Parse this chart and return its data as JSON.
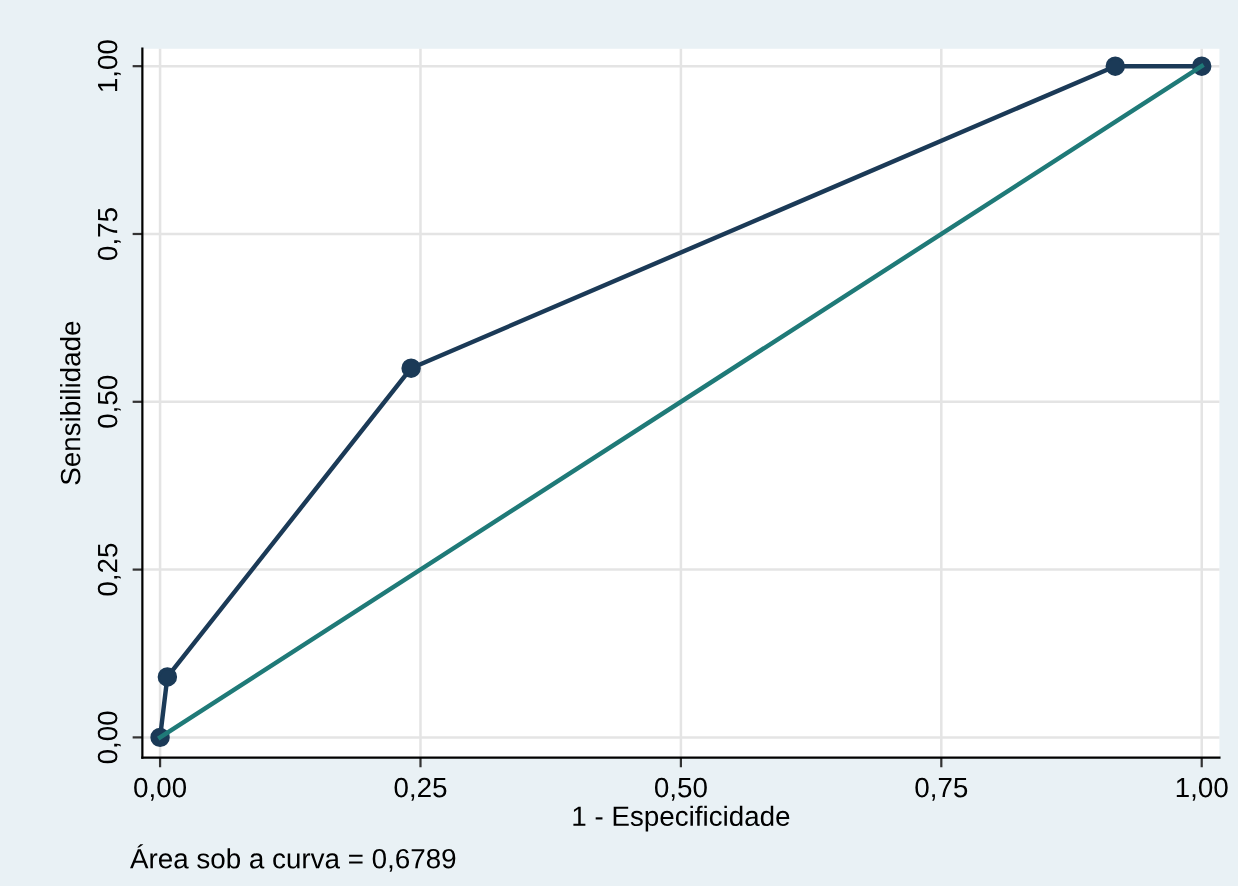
{
  "chart_data": {
    "type": "line",
    "xlabel": "1 - Especificidade",
    "ylabel": "Sensibilidade",
    "annotations": [
      "Área sob a curva = 0,6789"
    ],
    "series": [
      {
        "x": [
          0,
          0.007,
          0.241,
          0.917,
          1
        ],
        "values": [
          0,
          0.09,
          0.55,
          1,
          1
        ],
        "color": "#1b3a57",
        "marker": "circle"
      },
      {
        "x": [
          0,
          1
        ],
        "values": [
          0,
          1
        ],
        "color": "#1f7a78",
        "marker": "none"
      }
    ],
    "xlim": [
      -0.017,
      1.017
    ],
    "ylim": [
      -0.03,
      1.026
    ],
    "xticks": [
      {
        "value": 0,
        "label": "0,00"
      },
      {
        "value": 0.25,
        "label": "0,25"
      },
      {
        "value": 0.5,
        "label": "0,50"
      },
      {
        "value": 0.75,
        "label": "0,75"
      },
      {
        "value": 1,
        "label": "1,00"
      }
    ],
    "yticks": [
      {
        "value": 0,
        "label": "0,00"
      },
      {
        "value": 0.25,
        "label": "0,25"
      },
      {
        "value": 0.5,
        "label": "0,50"
      },
      {
        "value": 0.75,
        "label": "0,75"
      },
      {
        "value": 1,
        "label": "1,00"
      }
    ],
    "grid": true,
    "legend": false
  }
}
